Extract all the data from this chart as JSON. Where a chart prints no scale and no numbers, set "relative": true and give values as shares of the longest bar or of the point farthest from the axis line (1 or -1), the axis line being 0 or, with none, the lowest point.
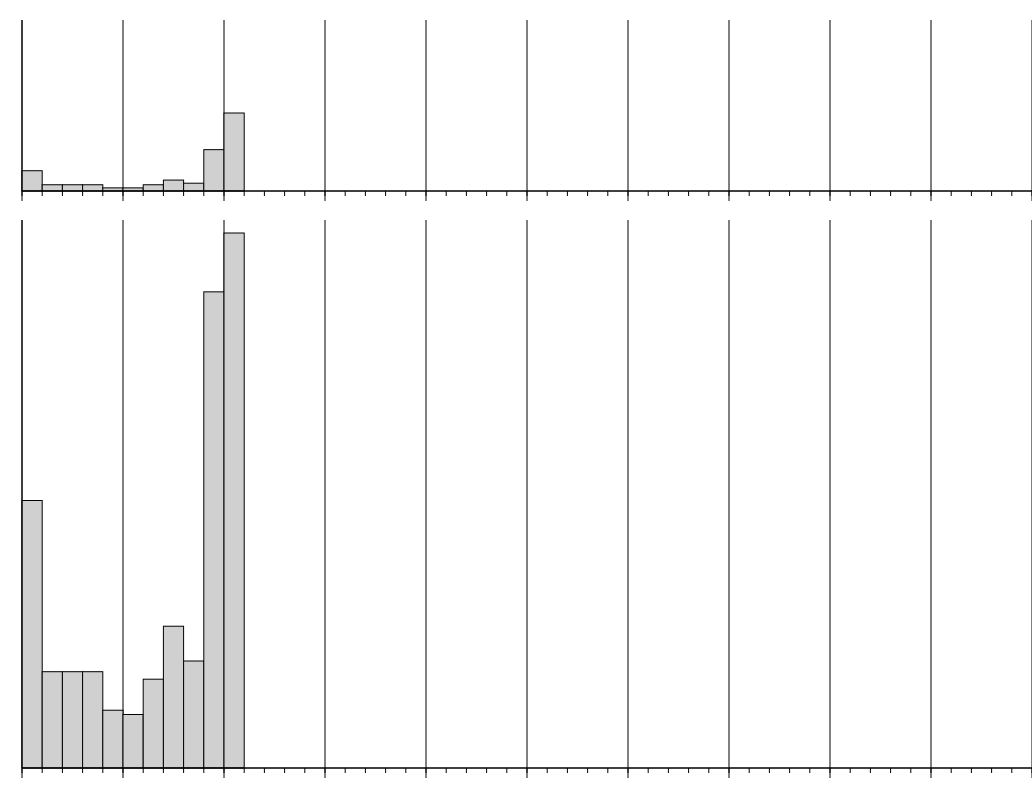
{
  "chart_data": [
    {
      "type": "bar",
      "relative": true,
      "grid": "x",
      "color": "#d0d0d0",
      "categories": [
        null,
        null,
        null,
        null,
        null,
        null,
        null,
        null,
        null,
        null,
        null
      ],
      "values": [
        0.26,
        0.08,
        0.08,
        0.08,
        0.04,
        0.04,
        0.08,
        0.14,
        0.1,
        0.53,
        1
      ]
    },
    {
      "type": "bar",
      "relative": true,
      "grid": "x",
      "color": "#d0d0d0",
      "categories": [
        null,
        null,
        null,
        null,
        null,
        null,
        null,
        null,
        null,
        null,
        null
      ],
      "values": [
        0.5,
        0.18,
        0.18,
        0.18,
        0.108,
        0.1,
        0.166,
        0.265,
        0.2,
        0.89,
        1
      ]
    }
  ]
}
